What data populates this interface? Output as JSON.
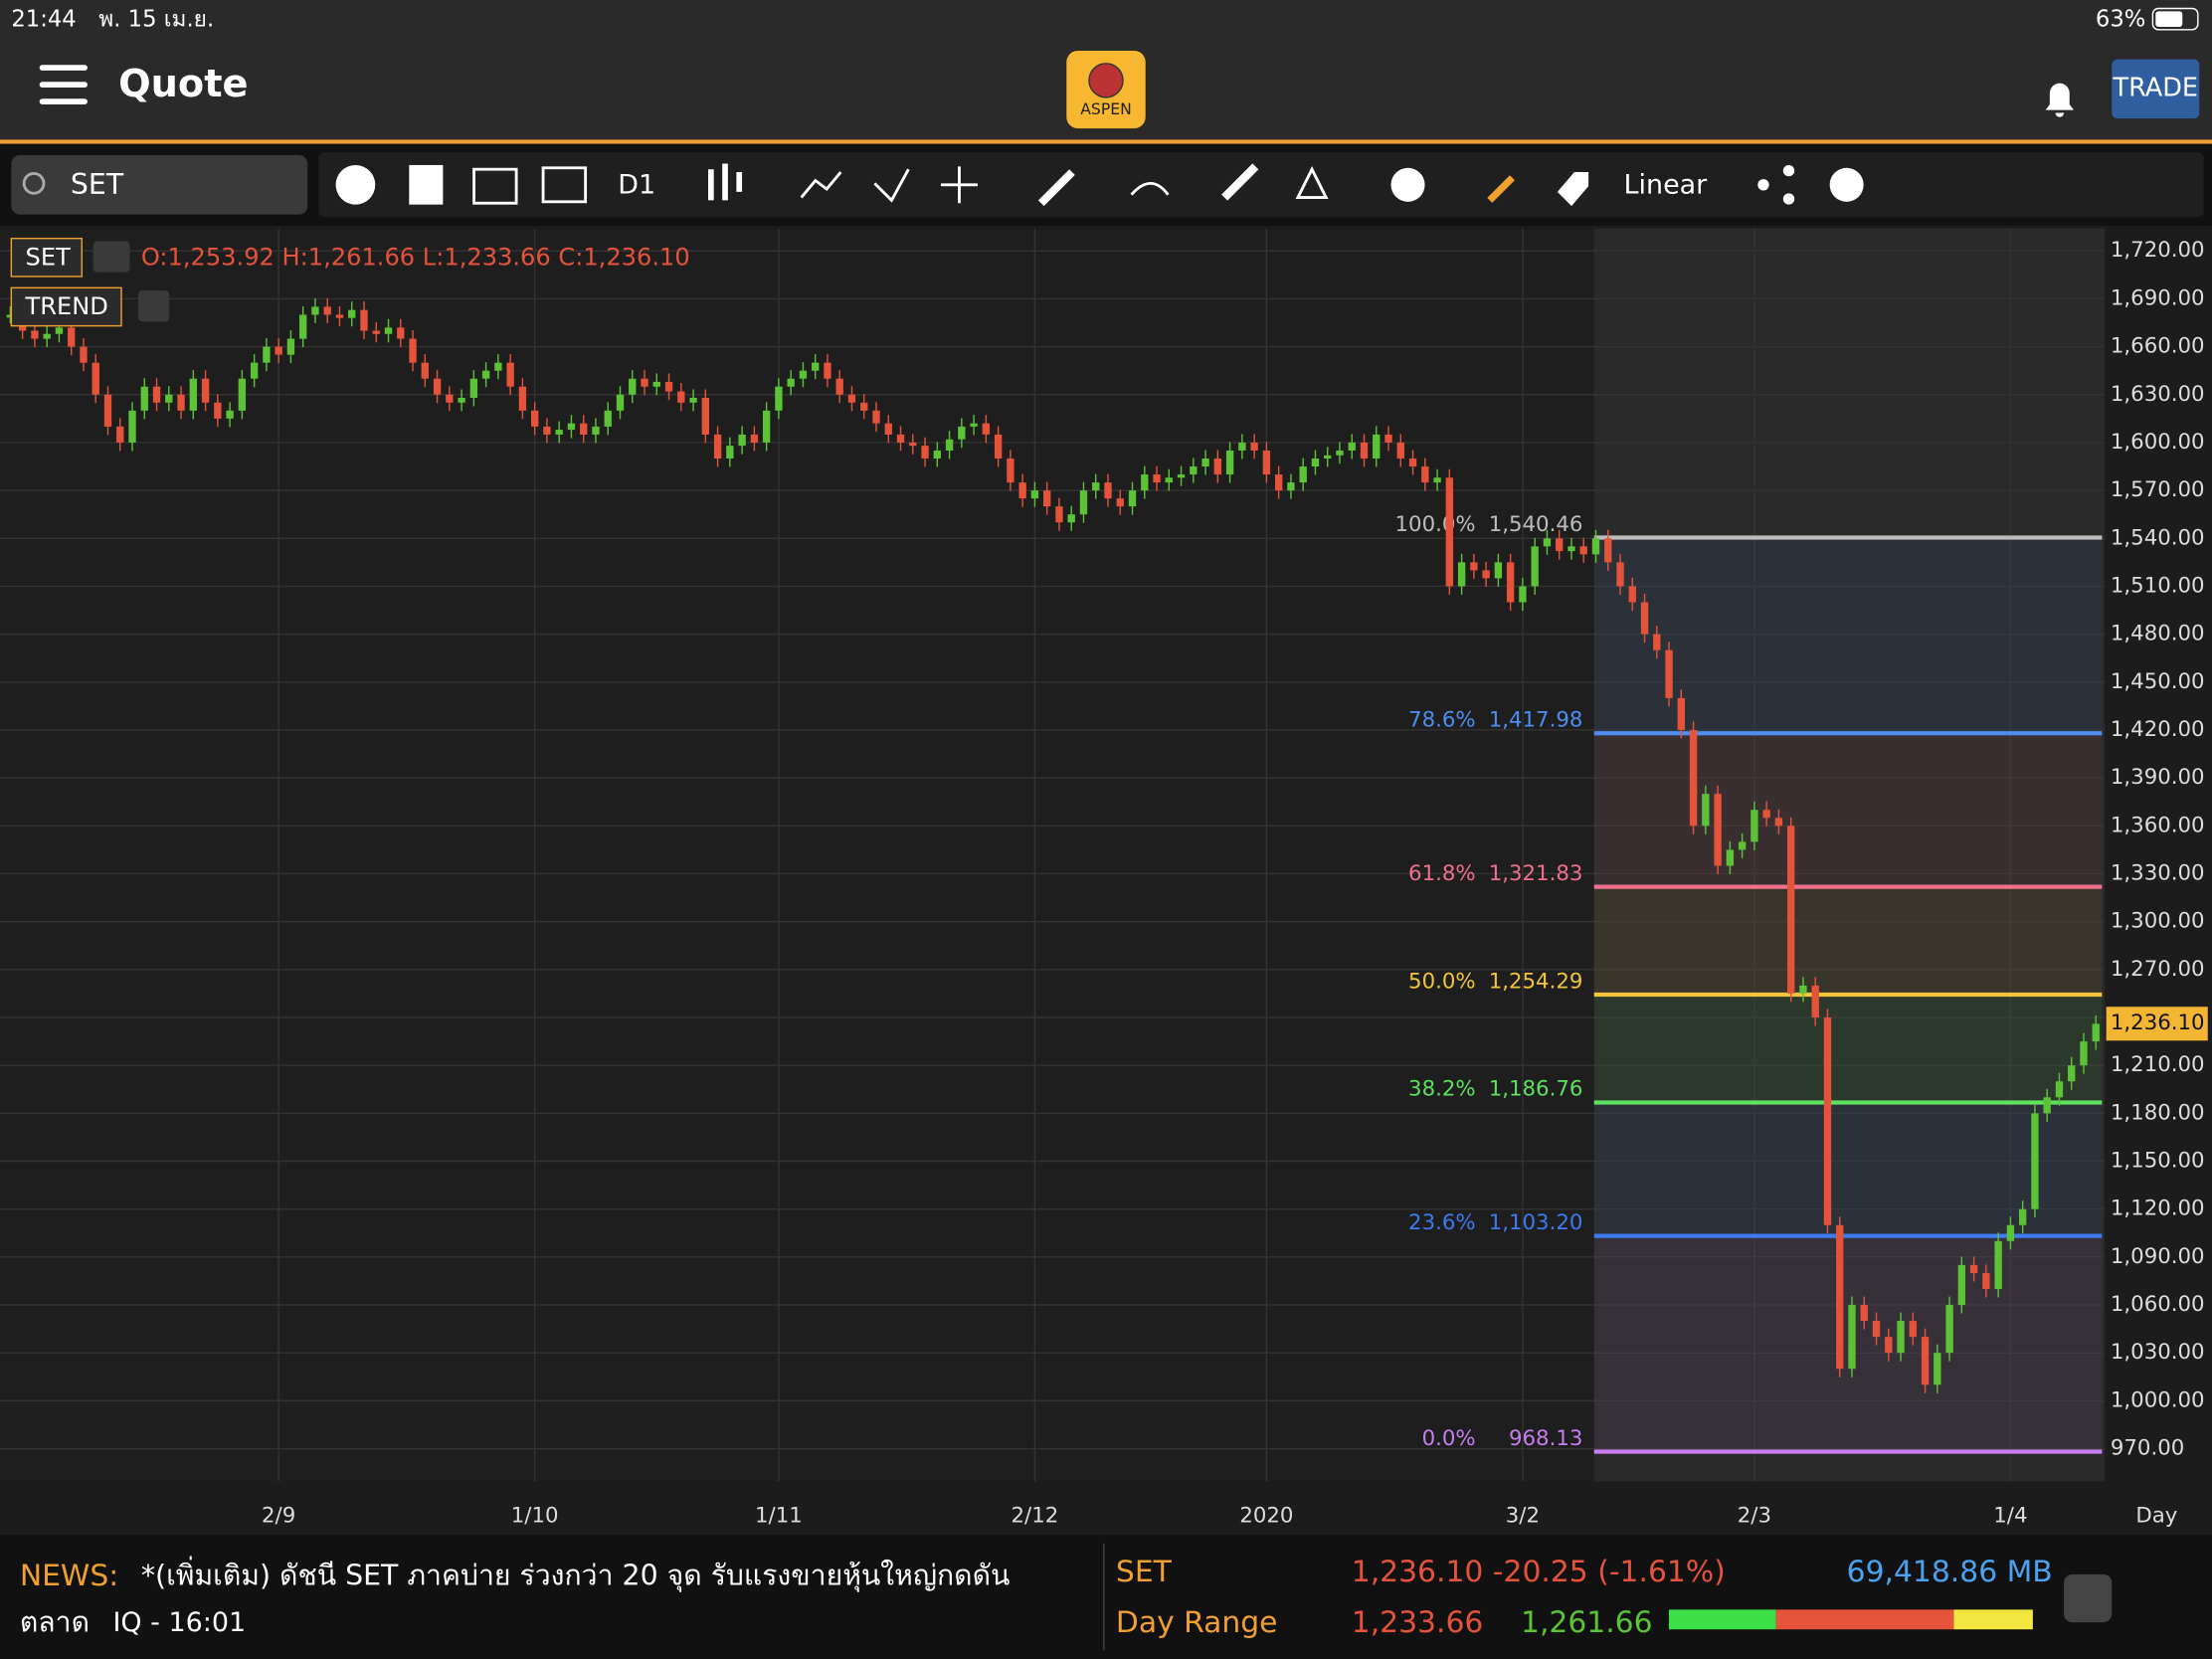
{
  "status_bar": {
    "time": "21:44",
    "date": "พ. 15 เม.ย.",
    "battery": "63%"
  },
  "header": {
    "title": "Quote",
    "logo": "ASPEN",
    "trade": "TRADE"
  },
  "toolbar": {
    "symbol": "SET",
    "interval": "D1",
    "scale": "Linear"
  },
  "chart_data": {
    "type": "candlestick",
    "symbol": "SET",
    "ohlc": "O:1,253.92 H:1,261.66 L:1,233.66 C:1,236.10",
    "study": "TREND",
    "up_color": "#5cc337",
    "down_color": "#e5533b",
    "values": [
      1680,
      1670,
      1665,
      1668,
      1672,
      1660,
      1650,
      1630,
      1610,
      1600,
      1620,
      1635,
      1625,
      1630,
      1620,
      1640,
      1625,
      1615,
      1620,
      1640,
      1650,
      1660,
      1655,
      1665,
      1680,
      1685,
      1680,
      1678,
      1683,
      1670,
      1668,
      1672,
      1665,
      1650,
      1640,
      1630,
      1625,
      1628,
      1640,
      1645,
      1650,
      1635,
      1620,
      1610,
      1605,
      1608,
      1612,
      1605,
      1610,
      1620,
      1630,
      1640,
      1635,
      1638,
      1632,
      1625,
      1628,
      1605,
      1590,
      1598,
      1605,
      1600,
      1620,
      1635,
      1640,
      1645,
      1650,
      1640,
      1630,
      1625,
      1620,
      1612,
      1605,
      1600,
      1598,
      1590,
      1595,
      1602,
      1610,
      1612,
      1605,
      1590,
      1575,
      1565,
      1570,
      1560,
      1550,
      1555,
      1570,
      1575,
      1565,
      1560,
      1570,
      1580,
      1575,
      1578,
      1580,
      1585,
      1590,
      1580,
      1595,
      1600,
      1595,
      1580,
      1570,
      1575,
      1585,
      1590,
      1592,
      1595,
      1600,
      1590,
      1605,
      1600,
      1590,
      1585,
      1575,
      1578,
      1510,
      1525,
      1520,
      1515,
      1525,
      1500,
      1510,
      1535,
      1540,
      1532,
      1535,
      1530,
      1540,
      1525,
      1510,
      1500,
      1480,
      1470,
      1440,
      1420,
      1360,
      1380,
      1335,
      1345,
      1350,
      1370,
      1365,
      1360,
      1255,
      1260,
      1240,
      1110,
      1020,
      1060,
      1050,
      1040,
      1030,
      1050,
      1040,
      1010,
      1030,
      1060,
      1085,
      1080,
      1070,
      1100,
      1110,
      1120,
      1180,
      1190,
      1200,
      1210,
      1225,
      1236
    ],
    "xlim": [
      -0.5,
      171.5
    ],
    "xticks": [
      {
        "value": 22,
        "label": "2/9"
      },
      {
        "value": 43,
        "label": "1/10"
      },
      {
        "value": 63,
        "label": "1/11"
      },
      {
        "value": 84,
        "label": "2/12"
      },
      {
        "value": 103,
        "label": "2020"
      },
      {
        "value": 124,
        "label": "3/2"
      },
      {
        "value": 143,
        "label": "2/3"
      },
      {
        "value": 164,
        "label": "1/4"
      }
    ],
    "x_unit": "Day",
    "ylim": [
      949.6,
      1734
    ],
    "yticks": [
      {
        "value": 970,
        "label": "970.00"
      },
      {
        "value": 1000,
        "label": "1,000.00"
      },
      {
        "value": 1030,
        "label": "1,030.00"
      },
      {
        "value": 1060,
        "label": "1,060.00"
      },
      {
        "value": 1090,
        "label": "1,090.00"
      },
      {
        "value": 1120,
        "label": "1,120.00"
      },
      {
        "value": 1150,
        "label": "1,150.00"
      },
      {
        "value": 1180,
        "label": "1,180.00"
      },
      {
        "value": 1210,
        "label": "1,210.00"
      },
      {
        "value": 1240,
        "label": "1,240.00"
      },
      {
        "value": 1270,
        "label": "1,270.00"
      },
      {
        "value": 1300,
        "label": "1,300.00"
      },
      {
        "value": 1330,
        "label": "1,330.00"
      },
      {
        "value": 1360,
        "label": "1,360.00"
      },
      {
        "value": 1390,
        "label": "1,390.00"
      },
      {
        "value": 1420,
        "label": "1,420.00"
      },
      {
        "value": 1450,
        "label": "1,450.00"
      },
      {
        "value": 1480,
        "label": "1,480.00"
      },
      {
        "value": 1510,
        "label": "1,510.00"
      },
      {
        "value": 1540,
        "label": "1,540.00"
      },
      {
        "value": 1570,
        "label": "1,570.00"
      },
      {
        "value": 1600,
        "label": "1,600.00"
      },
      {
        "value": 1630,
        "label": "1,630.00"
      },
      {
        "value": 1660,
        "label": "1,660.00"
      },
      {
        "value": 1690,
        "label": "1,690.00"
      },
      {
        "value": 1720,
        "label": "1,720.00"
      }
    ],
    "grid": true,
    "last_price": {
      "value": 1236.1,
      "label": "1,236.10"
    },
    "fib_levels": [
      {
        "ratio": "100.0%",
        "value": 1540.46,
        "value_label": "1,540.46",
        "color": "#bdbdbd"
      },
      {
        "ratio": "78.6%",
        "value": 1417.98,
        "value_label": "1,417.98",
        "color": "#4f8ef0"
      },
      {
        "ratio": "61.8%",
        "value": 1321.83,
        "value_label": "1,321.83",
        "color": "#f0708e"
      },
      {
        "ratio": "50.0%",
        "value": 1254.29,
        "value_label": "1,254.29",
        "color": "#f2c53d"
      },
      {
        "ratio": "38.2%",
        "value": 1186.76,
        "value_label": "1,186.76",
        "color": "#5fe05f"
      },
      {
        "ratio": "23.6%",
        "value": 1103.2,
        "value_label": "1,103.20",
        "color": "#3d7bef"
      },
      {
        "ratio": "0.0%",
        "value": 968.13,
        "value_label": "968.13",
        "color": "#c77ef0"
      }
    ]
  },
  "news": {
    "label": "NEWS:",
    "headline": "*(เพิ่มเติม) ดัชนี SET ภาคบ่าย ร่วงกว่า 20 จุด รับแรงขายหุ้นใหญ่กดดัน",
    "headline_cont": "ตลาด",
    "source": "IQ - 16:01"
  },
  "quote": {
    "symbol": "SET",
    "change": "1,236.10 -20.25 (-1.61%)",
    "value": "69,418.86 MB",
    "range_label": "Day Range",
    "low": "1,233.66",
    "high": "1,261.66"
  }
}
